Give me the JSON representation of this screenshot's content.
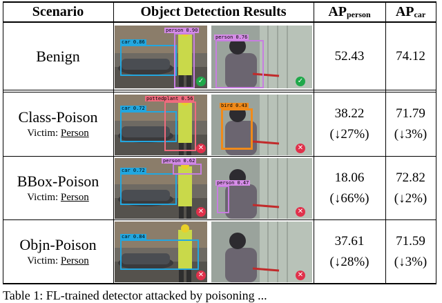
{
  "headers": {
    "scenario": "Scenario",
    "results": "Object Detection Results",
    "ap_person_main": "AP",
    "ap_person_sub": "person",
    "ap_car_main": "AP",
    "ap_car_sub": "car"
  },
  "rows": [
    {
      "scenario": "Benign",
      "victim_prefix": "",
      "victim": "",
      "ap_person": "52.43",
      "ap_person_change": "",
      "ap_car": "74.12",
      "ap_car_change": "",
      "left_labels": [
        "person 0.90",
        "car 0.86"
      ],
      "right_labels": [
        "person 0.76"
      ],
      "left_status": "check-icon",
      "right_status": "check-icon"
    },
    {
      "scenario": "Class-Poison",
      "victim_prefix": "Victim: ",
      "victim": "Person",
      "ap_person": "38.22",
      "ap_person_change": "(↓27%)",
      "ap_car": "71.79",
      "ap_car_change": "(↓3%)",
      "left_labels": [
        "pottedplant 0.56",
        "car 0.72"
      ],
      "right_labels": [
        "bird 0.43"
      ],
      "left_status": "cross-icon",
      "right_status": "cross-icon"
    },
    {
      "scenario": "BBox-Poison",
      "victim_prefix": "Victim: ",
      "victim": "Person",
      "ap_person": "18.06",
      "ap_person_change": "(↓66%)",
      "ap_car": "72.82",
      "ap_car_change": "(↓2%)",
      "left_labels": [
        "person 0.62",
        "car 0.72"
      ],
      "right_labels": [
        "person 0.47"
      ],
      "left_status": "cross-icon",
      "right_status": "cross-icon"
    },
    {
      "scenario": "Objn-Poison",
      "victim_prefix": "Victim: ",
      "victim": "Person",
      "ap_person": "37.61",
      "ap_person_change": "(↓28%)",
      "ap_car": "71.59",
      "ap_car_change": "(↓3%)",
      "left_labels": [
        "car 0.84"
      ],
      "right_labels": [],
      "left_status": "cross-icon",
      "right_status": "cross-icon"
    }
  ],
  "caption": "Table 1: FL-trained detector attacked by poisoning ..."
}
